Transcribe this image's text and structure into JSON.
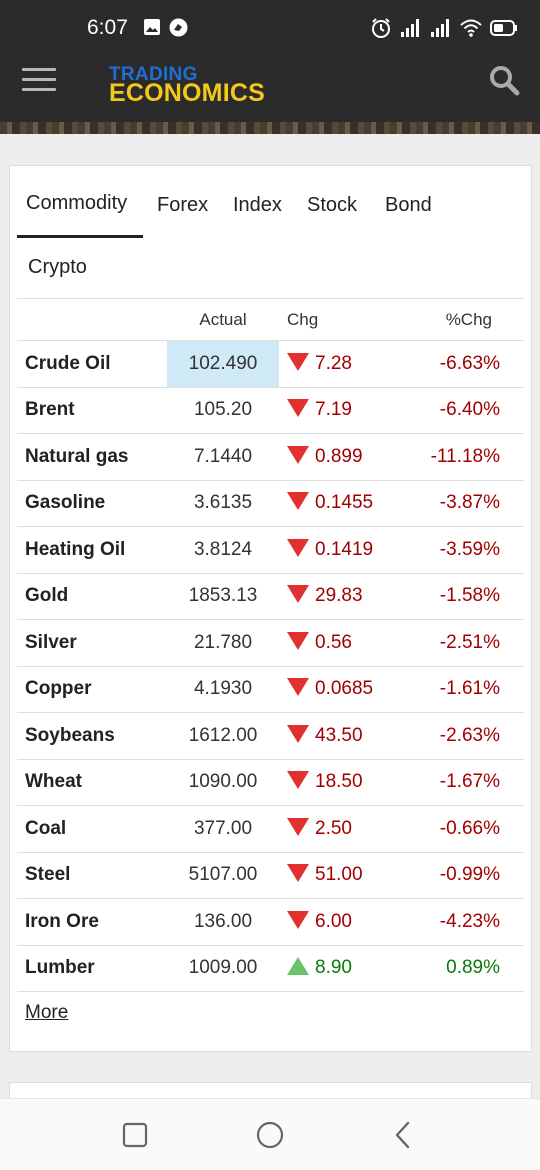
{
  "status_bar": {
    "time": "6:07"
  },
  "app_bar": {
    "logo_line1": "TRADING",
    "logo_line2": "ECONOMICS"
  },
  "tabs": [
    {
      "label": "Commodity",
      "active": true
    },
    {
      "label": "Forex",
      "active": false
    },
    {
      "label": "Index",
      "active": false
    },
    {
      "label": "Stock",
      "active": false
    },
    {
      "label": "Bond",
      "active": false
    },
    {
      "label": "Crypto",
      "active": false
    }
  ],
  "table": {
    "headers": {
      "name": "",
      "actual": "Actual",
      "chg": "Chg",
      "pct": "%Chg"
    },
    "rows": [
      {
        "name": "Crude Oil",
        "actual": "102.490",
        "chg": "7.28",
        "pct": "-6.63%",
        "direction": "down"
      },
      {
        "name": "Brent",
        "actual": "105.20",
        "chg": "7.19",
        "pct": "-6.40%",
        "direction": "down"
      },
      {
        "name": "Natural gas",
        "actual": "7.1440",
        "chg": "0.899",
        "pct": "-11.18%",
        "direction": "down"
      },
      {
        "name": "Gasoline",
        "actual": "3.6135",
        "chg": "0.1455",
        "pct": "-3.87%",
        "direction": "down"
      },
      {
        "name": "Heating Oil",
        "actual": "3.8124",
        "chg": "0.1419",
        "pct": "-3.59%",
        "direction": "down"
      },
      {
        "name": "Gold",
        "actual": "1853.13",
        "chg": "29.83",
        "pct": "-1.58%",
        "direction": "down"
      },
      {
        "name": "Silver",
        "actual": "21.780",
        "chg": "0.56",
        "pct": "-2.51%",
        "direction": "down"
      },
      {
        "name": "Copper",
        "actual": "4.1930",
        "chg": "0.0685",
        "pct": "-1.61%",
        "direction": "down"
      },
      {
        "name": "Soybeans",
        "actual": "1612.00",
        "chg": "43.50",
        "pct": "-2.63%",
        "direction": "down"
      },
      {
        "name": "Wheat",
        "actual": "1090.00",
        "chg": "18.50",
        "pct": "-1.67%",
        "direction": "down"
      },
      {
        "name": "Coal",
        "actual": "377.00",
        "chg": "2.50",
        "pct": "-0.66%",
        "direction": "down"
      },
      {
        "name": "Steel",
        "actual": "5107.00",
        "chg": "51.00",
        "pct": "-0.99%",
        "direction": "down"
      },
      {
        "name": "Iron Ore",
        "actual": "136.00",
        "chg": "6.00",
        "pct": "-4.23%",
        "direction": "down"
      },
      {
        "name": "Lumber",
        "actual": "1009.00",
        "chg": "8.90",
        "pct": "0.89%",
        "direction": "up"
      }
    ]
  },
  "more_link": "More",
  "colors": {
    "negative": "#a10000",
    "positive": "#0a7a0a",
    "highlight": "#cfe9f7",
    "brand_blue": "#1f6fd1",
    "brand_yellow": "#f4c81a"
  },
  "icons": {
    "nav": [
      "square-icon",
      "circle-home-icon",
      "back-chevron-icon"
    ]
  }
}
